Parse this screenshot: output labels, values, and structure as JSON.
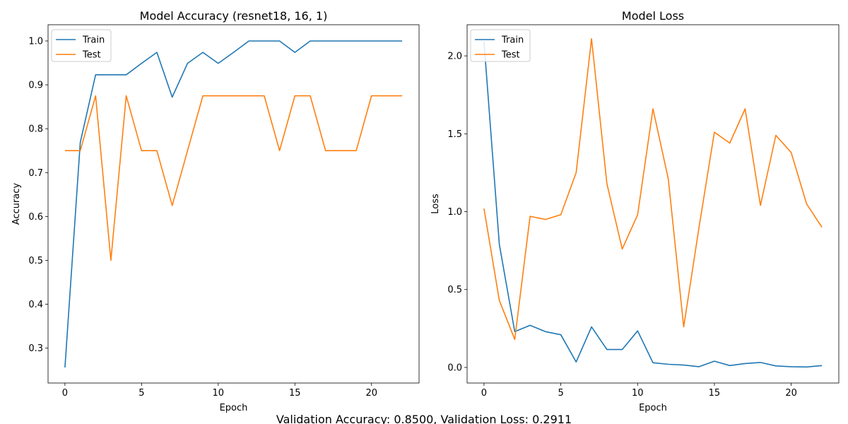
{
  "footer": {
    "text": "Validation Accuracy: 0.8500,      Validation Loss: 0.2911"
  },
  "chart_data": [
    {
      "type": "line",
      "title": "Model Accuracy (resnet18, 16, 1)",
      "xlabel": "Epoch",
      "ylabel": "Accuracy",
      "xlim": [
        -1.1,
        23.1
      ],
      "ylim": [
        0.2205,
        1.037
      ],
      "xticks": [
        0,
        5,
        10,
        15,
        20
      ],
      "yticks": [
        0.3,
        0.4,
        0.5,
        0.6,
        0.7,
        0.8,
        0.9,
        1.0
      ],
      "ytick_labels": [
        "0.3",
        "0.4",
        "0.5",
        "0.6",
        "0.7",
        "0.8",
        "0.9",
        "1.0"
      ],
      "grid": false,
      "legend": "upper-left",
      "x": [
        0,
        1,
        2,
        3,
        4,
        5,
        6,
        7,
        8,
        9,
        10,
        11,
        12,
        13,
        14,
        15,
        16,
        17,
        18,
        19,
        20,
        21,
        22
      ],
      "series": [
        {
          "name": "Train",
          "color": "#1f77b4",
          "values": [
            0.256,
            0.769,
            0.923,
            0.923,
            0.923,
            0.949,
            0.974,
            0.872,
            0.949,
            0.974,
            0.949,
            0.974,
            1.0,
            1.0,
            1.0,
            0.974,
            1.0,
            1.0,
            1.0,
            1.0,
            1.0,
            1.0,
            1.0
          ]
        },
        {
          "name": "Test",
          "color": "#ff7f0e",
          "values": [
            0.75,
            0.75,
            0.875,
            0.5,
            0.875,
            0.75,
            0.75,
            0.625,
            0.75,
            0.875,
            0.875,
            0.875,
            0.875,
            0.875,
            0.75,
            0.875,
            0.875,
            0.75,
            0.75,
            0.75,
            0.875,
            0.875,
            0.875
          ]
        }
      ]
    },
    {
      "type": "line",
      "title": "Model Loss",
      "xlabel": "Epoch",
      "ylabel": "Loss",
      "xlim": [
        -1.1,
        23.1
      ],
      "ylim": [
        -0.1,
        2.2
      ],
      "xticks": [
        0,
        5,
        10,
        15,
        20
      ],
      "yticks": [
        0.0,
        0.5,
        1.0,
        1.5,
        2.0
      ],
      "ytick_labels": [
        "0.0",
        "0.5",
        "1.0",
        "1.5",
        "2.0"
      ],
      "grid": false,
      "legend": "upper-left",
      "x": [
        0,
        1,
        2,
        3,
        4,
        5,
        6,
        7,
        8,
        9,
        10,
        11,
        12,
        13,
        14,
        15,
        16,
        17,
        18,
        19,
        20,
        21,
        22
      ],
      "series": [
        {
          "name": "Train",
          "color": "#1f77b4",
          "values": [
            2.09,
            0.79,
            0.23,
            0.27,
            0.23,
            0.21,
            0.035,
            0.26,
            0.115,
            0.115,
            0.235,
            0.03,
            0.02,
            0.015,
            0.005,
            0.04,
            0.012,
            0.025,
            0.032,
            0.01,
            0.005,
            0.003,
            0.012
          ]
        },
        {
          "name": "Test",
          "color": "#ff7f0e",
          "values": [
            1.02,
            0.43,
            0.18,
            0.97,
            0.95,
            0.98,
            1.25,
            2.11,
            1.18,
            0.76,
            0.98,
            1.66,
            1.21,
            0.26,
            0.9,
            1.51,
            1.44,
            1.66,
            1.04,
            1.49,
            1.38,
            1.05,
            0.9
          ]
        }
      ]
    }
  ]
}
